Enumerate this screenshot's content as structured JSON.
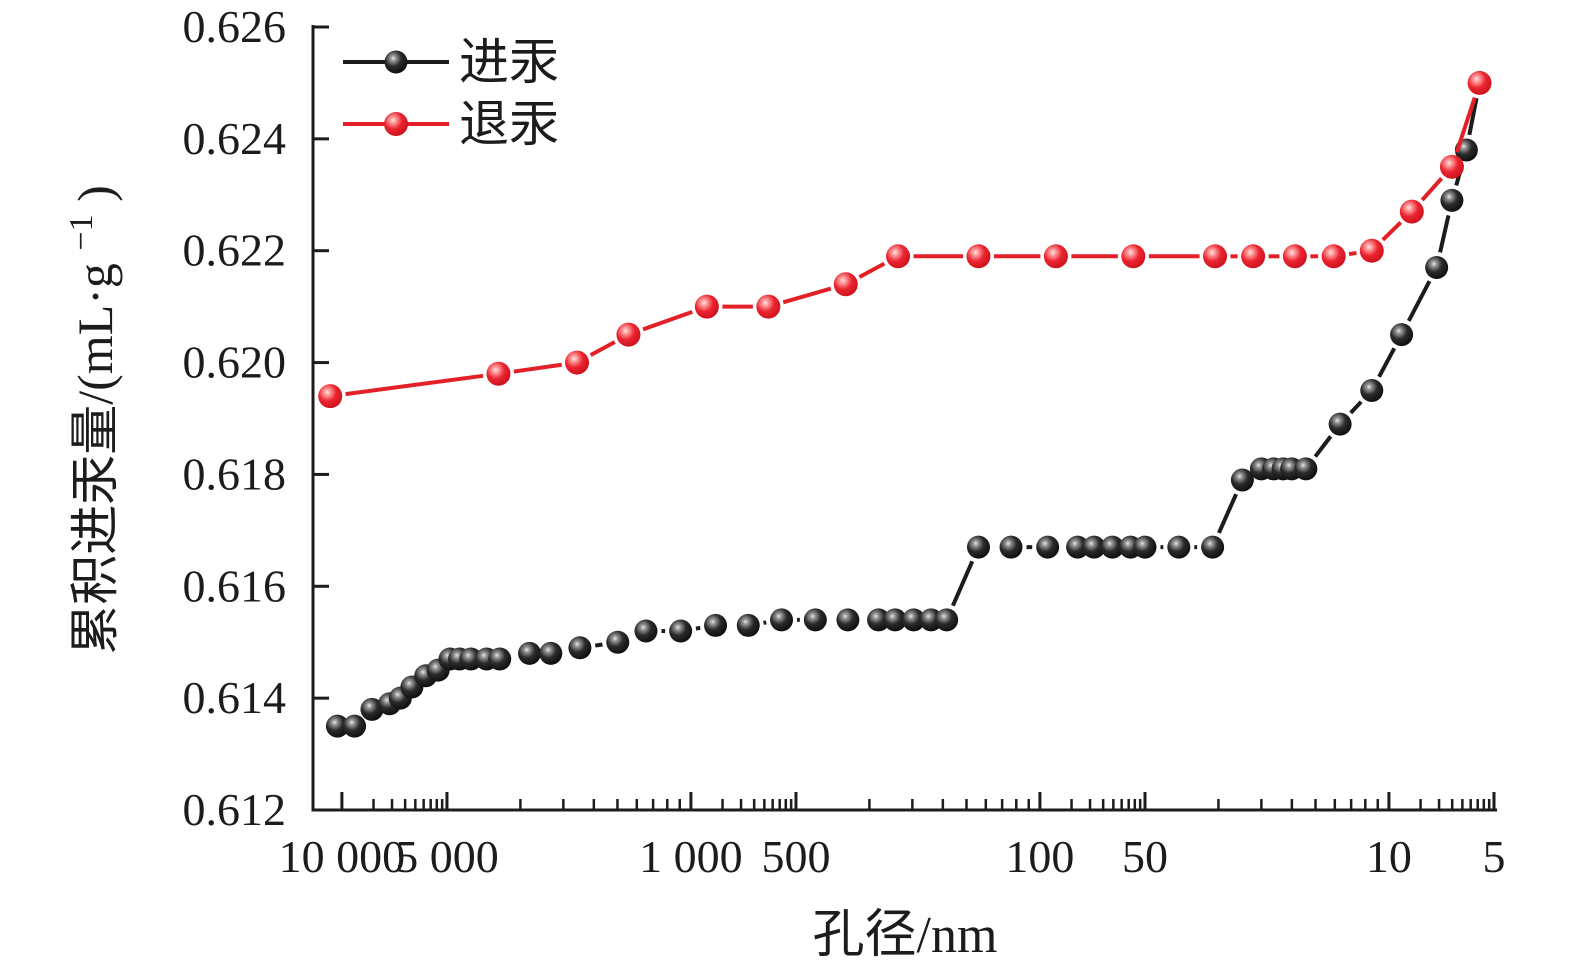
{
  "figure": {
    "background": "#ffffff"
  },
  "axes": {
    "x": {
      "title": "孔径/nm",
      "tick_labels": [
        "10 000",
        "5 000",
        "1 000",
        "500",
        "100",
        "50",
        "10",
        "5"
      ],
      "tick_values": [
        10000,
        5000,
        1000,
        500,
        100,
        50,
        10,
        5
      ]
    },
    "y": {
      "title_full": "累积进汞量/(mL·g−1)",
      "title_main": "累积进汞量/(mL·g",
      "title_sup": "−1",
      "title_close": ")",
      "tick_labels": [
        "0.612",
        "0.614",
        "0.616",
        "0.618",
        "0.620",
        "0.622",
        "0.624",
        "0.626"
      ]
    }
  },
  "legend": {
    "items": [
      {
        "label": "进汞",
        "color": "#1c1c1c"
      },
      {
        "label": "退汞",
        "color": "#e32028"
      }
    ]
  },
  "chart_data": {
    "type": "line",
    "title": "",
    "xlabel": "孔径/nm",
    "ylabel": "累积进汞量/(mL·g⁻¹)",
    "x_scale": "log10-reversed",
    "xlim": [
      12100,
      5
    ],
    "ylim": [
      0.612,
      0.626
    ],
    "y_major_step": 0.002,
    "grid": false,
    "legend_position": "top-left-inside",
    "x_tick_values": [
      10000,
      5000,
      1000,
      500,
      100,
      50,
      10,
      5
    ],
    "x_tick_labels": [
      "10 000",
      "5 000",
      "1 000",
      "500",
      "100",
      "50",
      "10",
      "5"
    ],
    "y_tick_values": [
      0.612,
      0.614,
      0.616,
      0.618,
      0.62,
      0.622,
      0.624,
      0.626
    ],
    "y_tick_labels": [
      "0.612",
      "0.614",
      "0.616",
      "0.618",
      "0.620",
      "0.622",
      "0.624",
      "0.626"
    ],
    "series": [
      {
        "name": "进汞",
        "color": "#1c1c1c",
        "marker": "ball",
        "points": [
          [
            10300,
            0.6135
          ],
          [
            9200,
            0.6135
          ],
          [
            8200,
            0.6138
          ],
          [
            7300,
            0.6139
          ],
          [
            6800,
            0.614
          ],
          [
            6300,
            0.6142
          ],
          [
            5750,
            0.6144
          ],
          [
            5300,
            0.6145
          ],
          [
            4900,
            0.6147
          ],
          [
            4600,
            0.6147
          ],
          [
            4270,
            0.6147
          ],
          [
            3850,
            0.6147
          ],
          [
            3530,
            0.6147
          ],
          [
            2900,
            0.6148
          ],
          [
            2520,
            0.6148
          ],
          [
            2080,
            0.6149
          ],
          [
            1620,
            0.615
          ],
          [
            1345,
            0.6152
          ],
          [
            1070,
            0.6152
          ],
          [
            850,
            0.6153
          ],
          [
            685,
            0.6153
          ],
          [
            550,
            0.6154
          ],
          [
            440,
            0.6154
          ],
          [
            355,
            0.6154
          ],
          [
            290,
            0.6154
          ],
          [
            260,
            0.6154
          ],
          [
            230,
            0.6154
          ],
          [
            205,
            0.6154
          ],
          [
            185,
            0.6154
          ],
          [
            150,
            0.6167
          ],
          [
            121,
            0.6167
          ],
          [
            95,
            0.6167
          ],
          [
            78,
            0.6167
          ],
          [
            70,
            0.6167
          ],
          [
            62,
            0.6167
          ],
          [
            55,
            0.6167
          ],
          [
            50,
            0.6167
          ],
          [
            40,
            0.6167
          ],
          [
            32,
            0.6167
          ],
          [
            26.3,
            0.6179
          ],
          [
            23.2,
            0.6181
          ],
          [
            21.4,
            0.6181
          ],
          [
            20.1,
            0.6181
          ],
          [
            19,
            0.6181
          ],
          [
            17.3,
            0.6181
          ],
          [
            13.8,
            0.6189
          ],
          [
            11.2,
            0.6195
          ],
          [
            9.2,
            0.6205
          ],
          [
            7.3,
            0.6217
          ],
          [
            6.6,
            0.6229
          ],
          [
            6.0,
            0.6238
          ],
          [
            5.5,
            0.625
          ]
        ]
      },
      {
        "name": "退汞",
        "color": "#e32028",
        "marker": "ball",
        "points": [
          [
            10800,
            0.6194
          ],
          [
            3560,
            0.6198
          ],
          [
            2120,
            0.62
          ],
          [
            1510,
            0.6205
          ],
          [
            900,
            0.621
          ],
          [
            600,
            0.621
          ],
          [
            360,
            0.6214
          ],
          [
            255,
            0.6219
          ],
          [
            150,
            0.6219
          ],
          [
            90,
            0.6219
          ],
          [
            54,
            0.6219
          ],
          [
            31.5,
            0.6219
          ],
          [
            24.5,
            0.6219
          ],
          [
            18.6,
            0.6219
          ],
          [
            14.4,
            0.6219
          ],
          [
            11.2,
            0.622
          ],
          [
            8.6,
            0.6227
          ],
          [
            6.6,
            0.6235
          ],
          [
            5.5,
            0.625
          ]
        ]
      }
    ]
  }
}
